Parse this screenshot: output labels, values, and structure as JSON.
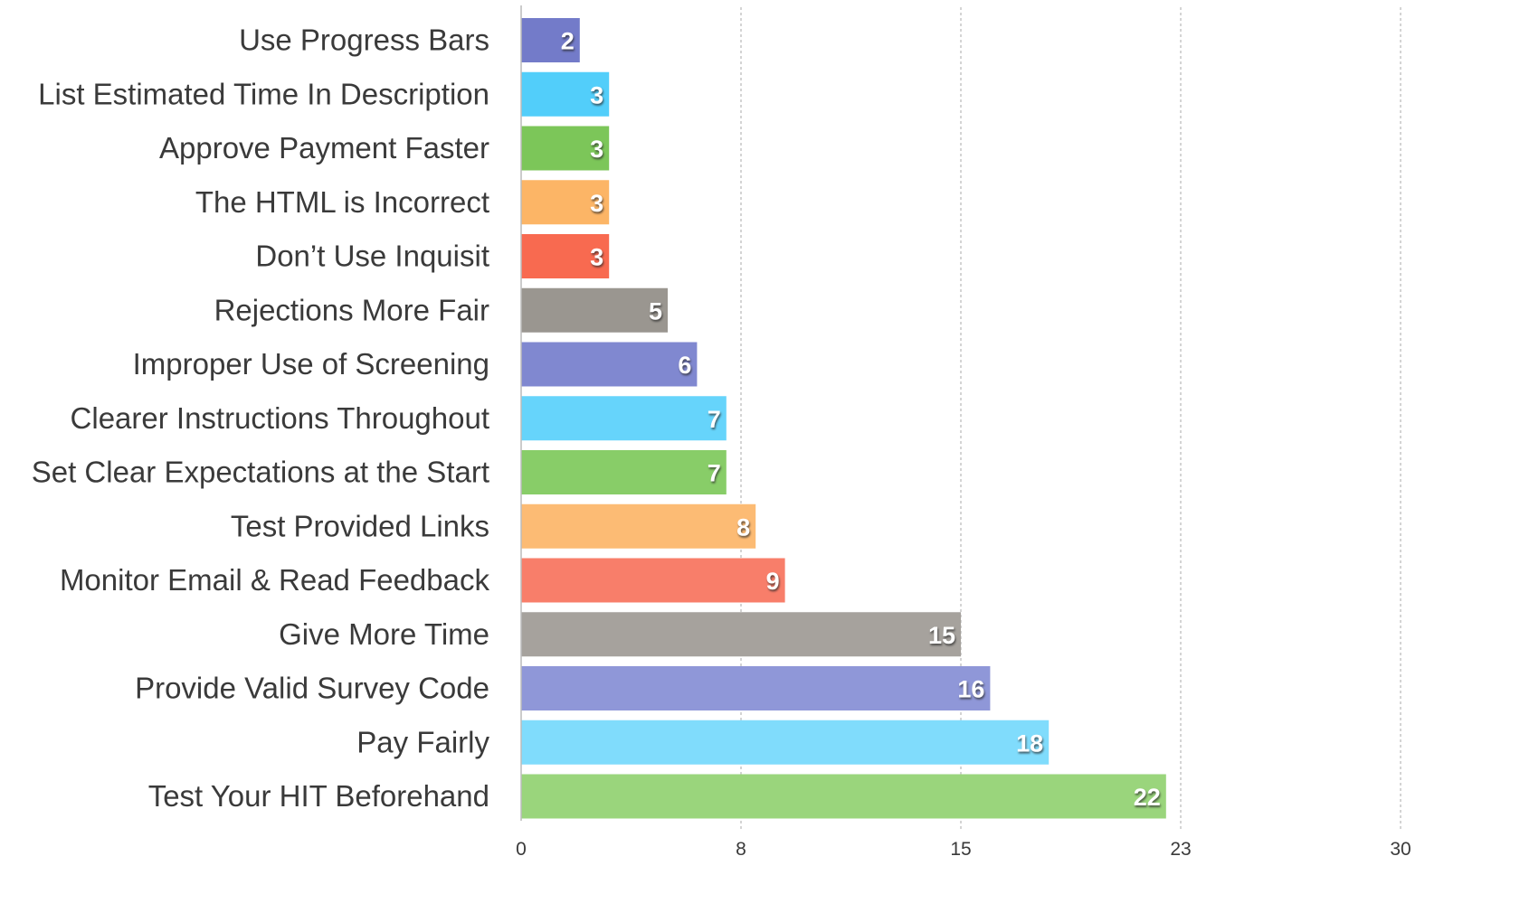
{
  "chart_data": {
    "type": "bar",
    "orientation": "horizontal",
    "categories": [
      "Use Progress Bars",
      "List Estimated Time In Description",
      "Approve Payment Faster",
      "The HTML is Incorrect",
      "Don’t Use Inquisit",
      "Rejections More Fair",
      "Improper Use of Screening",
      "Clearer Instructions Throughout",
      "Set Clear Expectations at the Start",
      "Test Provided Links",
      "Monitor Email & Read Feedback",
      "Give More Time",
      "Provide Valid Survey Code",
      "Pay Fairly",
      "Test Your HIT Beforehand"
    ],
    "values": [
      2,
      3,
      3,
      3,
      3,
      5,
      6,
      7,
      7,
      8,
      9,
      15,
      16,
      18,
      22
    ],
    "colors": [
      "#737bc9",
      "#52cefa",
      "#7cc659",
      "#fcb566",
      "#f86a50",
      "#9a9690",
      "#8088d0",
      "#66d4fb",
      "#88cd68",
      "#fcbb74",
      "#f87e6a",
      "#a6a29d",
      "#8f97d8",
      "#80dcfc",
      "#9ad57c"
    ],
    "xticks": [
      "0",
      "8",
      "15",
      "23",
      "30"
    ],
    "xlim": [
      0,
      30
    ],
    "title": "",
    "xlabel": "",
    "ylabel": "",
    "grid": true,
    "legend": "none"
  }
}
